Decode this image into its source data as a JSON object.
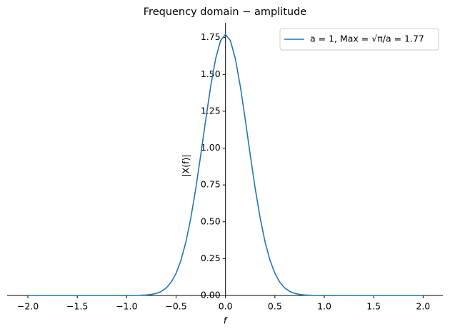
{
  "chart_data": {
    "type": "line",
    "title": "Frequency domain − amplitude",
    "xlabel": "f",
    "ylabel": "|X(f)|",
    "x": [
      -2,
      -1.5,
      -1.2,
      -1,
      -0.9,
      -0.8,
      -0.75,
      -0.7,
      -0.65,
      -0.6,
      -0.55,
      -0.5,
      -0.45,
      -0.4,
      -0.35,
      -0.3,
      -0.25,
      -0.2,
      -0.15,
      -0.1,
      -0.05,
      0,
      0.05,
      0.1,
      0.15,
      0.2,
      0.25,
      0.3,
      0.35,
      0.4,
      0.45,
      0.5,
      0.55,
      0.6,
      0.65,
      0.7,
      0.75,
      0.8,
      0.9,
      1,
      1.2,
      1.5,
      2
    ],
    "series": [
      {
        "name": "a = 1, Max = √π/a = 1.77",
        "color": "#1f77b4",
        "values": [
          0,
          0,
          0,
          0.0001,
          0.0006,
          0.0032,
          0.0069,
          0.0141,
          0.0274,
          0.0507,
          0.0895,
          0.15,
          0.24,
          0.365,
          0.529,
          0.729,
          0.956,
          1.194,
          1.419,
          1.606,
          1.729,
          1.772,
          1.729,
          1.606,
          1.419,
          1.194,
          0.956,
          0.729,
          0.529,
          0.365,
          0.24,
          0.15,
          0.0895,
          0.0507,
          0.0274,
          0.0141,
          0.0069,
          0.0032,
          0.0006,
          0.0001,
          0,
          0,
          0
        ]
      }
    ],
    "xlim": [
      -2.21,
      2.2
    ],
    "ylim": [
      0,
      1.85
    ],
    "xticks": [
      {
        "value": -2,
        "label": "−2.0"
      },
      {
        "value": -1.5,
        "label": "−1.5"
      },
      {
        "value": -1,
        "label": "−1.0"
      },
      {
        "value": -0.5,
        "label": "−0.5"
      },
      {
        "value": 0,
        "label": "0.0"
      },
      {
        "value": 0.5,
        "label": "0.5"
      },
      {
        "value": 1,
        "label": "1.0"
      },
      {
        "value": 1.5,
        "label": "1.5"
      },
      {
        "value": 2,
        "label": "2.0"
      }
    ],
    "yticks": [
      {
        "value": 0,
        "label": "0.00"
      },
      {
        "value": 0.25,
        "label": "0.25"
      },
      {
        "value": 0.5,
        "label": "0.50"
      },
      {
        "value": 0.75,
        "label": "0.75"
      },
      {
        "value": 1,
        "label": "1.00"
      },
      {
        "value": 1.25,
        "label": "1.25"
      },
      {
        "value": 1.5,
        "label": "1.50"
      },
      {
        "value": 1.75,
        "label": "1.75"
      }
    ],
    "legend": "upper right"
  }
}
